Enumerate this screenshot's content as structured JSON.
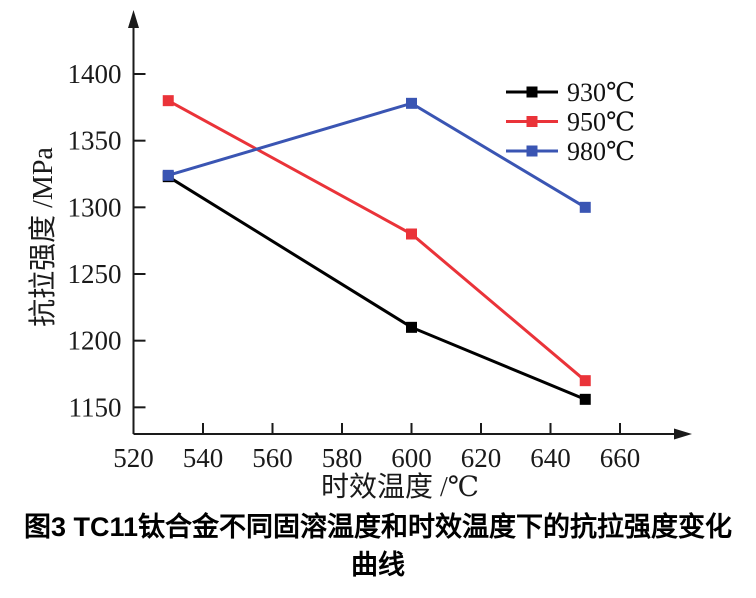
{
  "figure": {
    "caption_line1": "图3  TC11钛合金不同固溶温度和时效温度下的抗拉强度变化",
    "caption_line2": "曲线"
  },
  "chart_data": {
    "type": "line",
    "title": "",
    "xlabel": "时效温度 /℃",
    "ylabel": "抗拉强度 /MPa",
    "x": [
      530,
      600,
      650
    ],
    "xlim": [
      520,
      680
    ],
    "ylim": [
      1130,
      1445
    ],
    "xticks": [
      520,
      540,
      560,
      580,
      600,
      620,
      640,
      660
    ],
    "yticks": [
      1150,
      1200,
      1250,
      1300,
      1350,
      1400
    ],
    "grid": false,
    "legend_position": "upper right",
    "marker": "square",
    "axis_color": "#1a1a1a",
    "series": [
      {
        "name": "930℃",
        "color": "#000000",
        "values": [
          1323,
          1210,
          1156
        ]
      },
      {
        "name": "950℃",
        "color": "#ea3339",
        "values": [
          1380,
          1280,
          1170
        ]
      },
      {
        "name": "980℃",
        "color": "#3a55b3",
        "values": [
          1324,
          1378,
          1300
        ]
      }
    ]
  }
}
